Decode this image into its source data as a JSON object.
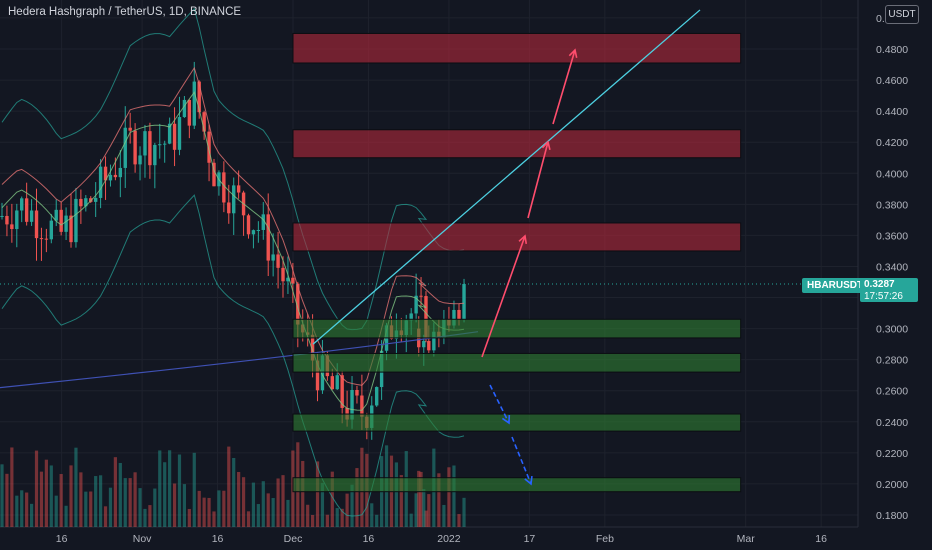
{
  "header": {
    "title": "Hedera Hashgraph / TetherUS, 1D, BINANCE",
    "currency": "USDT"
  },
  "last_price": {
    "symbol": "HBARUSDT",
    "value": "0.3287",
    "countdown": "17:57:26"
  },
  "colors": {
    "background": "#131722",
    "grid": "#1e222d",
    "text": "#b2b5be",
    "up": "#26a69a",
    "down": "#ef5350",
    "resistance_zone": "#b2283a",
    "support_zone": "#2e7d32",
    "trendline": "#4dd0e1",
    "ma_fast": "#e57373",
    "ma_mid": "#81c784",
    "ma_slow": "#3f51b5",
    "bands": "#26a69a",
    "projection_up": "#ff4d6d",
    "projection_down": "#2962ff"
  },
  "chart_data": {
    "type": "candlestick",
    "y_axis": {
      "range": [
        0.17,
        0.5
      ],
      "ticks": [
        "0.1800",
        "0.2000",
        "0.2200",
        "0.2400",
        "0.2600",
        "0.2800",
        "0.3000",
        "0.3200",
        "0.3400",
        "0.3600",
        "0.3800",
        "0.4000",
        "0.4200",
        "0.4400",
        "0.4600",
        "0.4800",
        "0.5000"
      ]
    },
    "x_axis": {
      "ticks": [
        {
          "label": "16",
          "date": "2021-10-16"
        },
        {
          "label": "Nov",
          "date": "2021-11-01"
        },
        {
          "label": "16",
          "date": "2021-11-16"
        },
        {
          "label": "Dec",
          "date": "2021-12-01"
        },
        {
          "label": "16",
          "date": "2021-12-16"
        },
        {
          "label": "2022",
          "date": "2022-01-01"
        },
        {
          "label": "17",
          "date": "2022-01-17"
        },
        {
          "label": "Feb",
          "date": "2022-02-01"
        },
        {
          "label": "Mar",
          "date": "2022-03-01"
        },
        {
          "label": "16",
          "date": "2022-03-16"
        }
      ]
    },
    "candles": [
      {
        "date": "2021-12-26",
        "open": 0.3,
        "high": 0.308,
        "low": 0.282,
        "close": 0.288
      },
      {
        "date": "2021-12-27",
        "open": 0.288,
        "high": 0.296,
        "low": 0.276,
        "close": 0.292
      },
      {
        "date": "2021-12-28",
        "open": 0.292,
        "high": 0.302,
        "low": 0.284,
        "close": 0.286
      },
      {
        "date": "2021-12-29",
        "open": 0.286,
        "high": 0.304,
        "low": 0.282,
        "close": 0.298
      },
      {
        "date": "2021-12-30",
        "open": 0.298,
        "high": 0.306,
        "low": 0.288,
        "close": 0.294
      },
      {
        "date": "2021-12-31",
        "open": 0.294,
        "high": 0.312,
        "low": 0.29,
        "close": 0.306
      },
      {
        "date": "2022-01-01",
        "open": 0.306,
        "high": 0.314,
        "low": 0.298,
        "close": 0.302
      },
      {
        "date": "2022-01-02",
        "open": 0.302,
        "high": 0.318,
        "low": 0.3,
        "close": 0.312
      },
      {
        "date": "2022-01-03",
        "open": 0.312,
        "high": 0.316,
        "low": 0.302,
        "close": 0.306
      },
      {
        "date": "2022-01-04",
        "open": 0.306,
        "high": 0.332,
        "low": 0.304,
        "close": 0.3287
      }
    ],
    "zones": [
      {
        "kind": "resistance",
        "from": 0.471,
        "to": 0.49,
        "start": "2021-12-01",
        "end": "2022-02-28"
      },
      {
        "kind": "resistance",
        "from": 0.41,
        "to": 0.428,
        "start": "2021-12-01",
        "end": "2022-02-28"
      },
      {
        "kind": "resistance",
        "from": 0.35,
        "to": 0.368,
        "start": "2021-12-01",
        "end": "2022-02-28"
      },
      {
        "kind": "support",
        "from": 0.294,
        "to": 0.306,
        "start": "2021-12-01",
        "end": "2022-02-28"
      },
      {
        "kind": "support",
        "from": 0.272,
        "to": 0.284,
        "start": "2021-12-01",
        "end": "2022-02-28"
      },
      {
        "kind": "support",
        "from": 0.234,
        "to": 0.245,
        "start": "2021-12-01",
        "end": "2022-02-28"
      },
      {
        "kind": "support",
        "from": 0.195,
        "to": 0.204,
        "start": "2021-12-01",
        "end": "2022-02-28"
      }
    ]
  }
}
